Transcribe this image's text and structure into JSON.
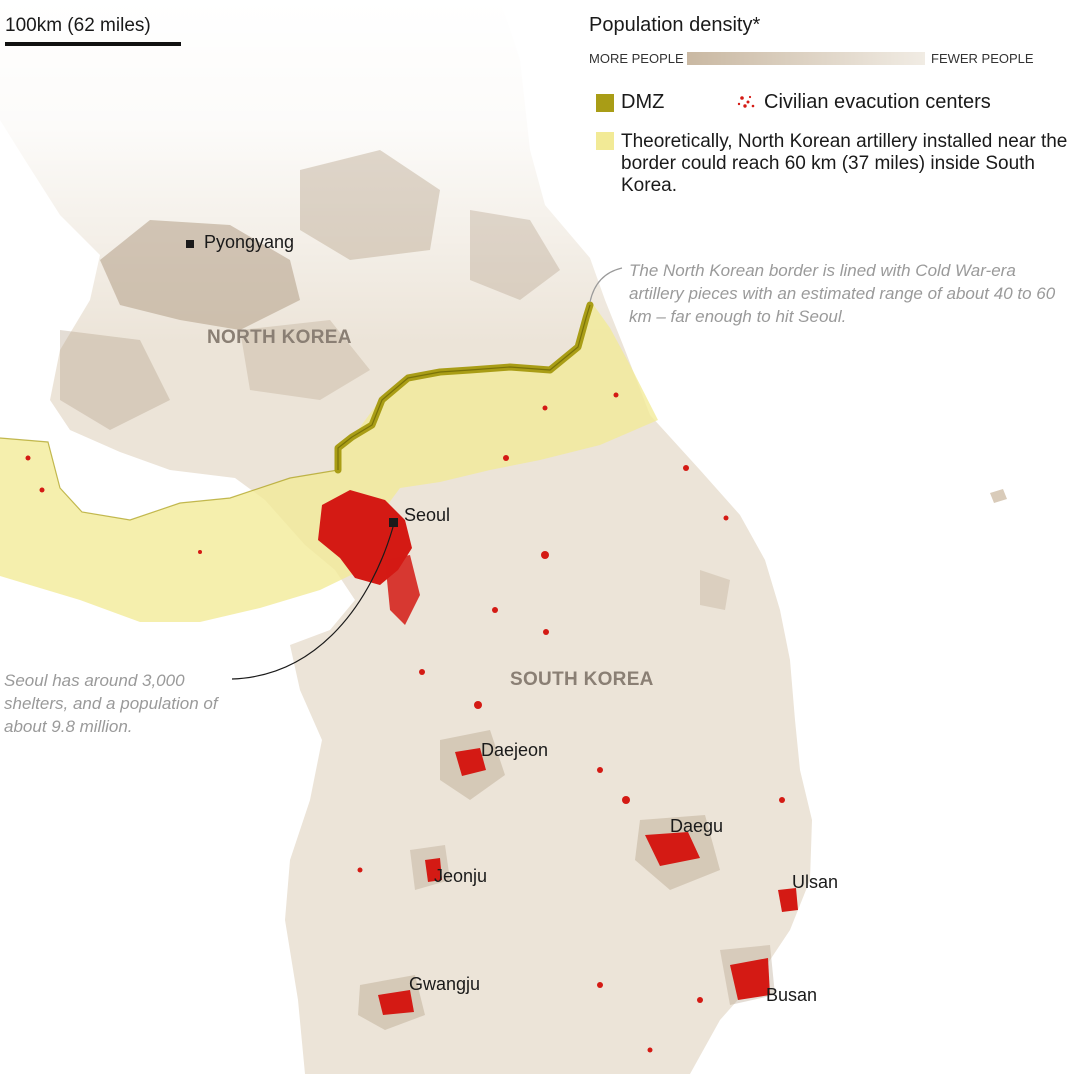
{
  "scale_bar": {
    "label": "100km (62 miles)"
  },
  "legend": {
    "title": "Population density*",
    "more_label": "MORE PEOPLE",
    "fewer_label": "FEWER PEOPLE",
    "dmz_label": "DMZ",
    "evac_label": "Civilian evacution centers",
    "range_label": "Theoretically, North Korean artillery installed near the border could reach 60 km (37 miles) inside South Korea."
  },
  "regions": {
    "north": "NORTH KOREA",
    "south": "SOUTH KOREA"
  },
  "cities": [
    "Pyongyang",
    "Seoul",
    "Daejeon",
    "Daegu",
    "Jeonju",
    "Ulsan",
    "Gwangju",
    "Busan"
  ],
  "annotations": {
    "border_note": "The North Korean border is lined with Cold War-era artillery  pieces with an estimated range of about 40 to 60 km – far enough to hit Seoul.",
    "seoul_note": "Seoul has around 3,000 shelters, and a population of about 9.8 million."
  },
  "colors": {
    "land": "#ece4d8",
    "density_dark": "#b39f86",
    "density_light": "#f1ece4",
    "range_zone": "#f2ea96",
    "dmz": "#a99d16",
    "shelter": "#d41a14",
    "capital_marker": "#1a1a1a"
  }
}
